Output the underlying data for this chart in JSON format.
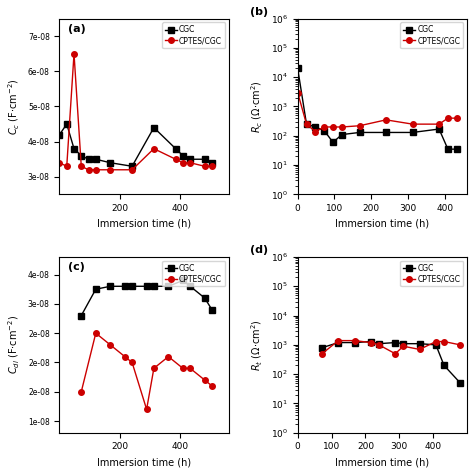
{
  "subplot_a": {
    "label": "(a)",
    "cgc_x": [
      0,
      24,
      48,
      72,
      96,
      120,
      168,
      240,
      312,
      384,
      408,
      432,
      480,
      504
    ],
    "cgc_y": [
      4.2e-08,
      4.5e-08,
      3.8e-08,
      3.6e-08,
      3.5e-08,
      3.5e-08,
      3.4e-08,
      3.3e-08,
      4.4e-08,
      3.8e-08,
      3.6e-08,
      3.5e-08,
      3.5e-08,
      3.4e-08
    ],
    "cptes_x": [
      0,
      24,
      48,
      72,
      96,
      120,
      168,
      240,
      312,
      384,
      408,
      432,
      480,
      504
    ],
    "cptes_y": [
      3.4e-08,
      3.3e-08,
      6.5e-08,
      3.3e-08,
      3.2e-08,
      3.2e-08,
      3.2e-08,
      3.2e-08,
      3.8e-08,
      3.5e-08,
      3.4e-08,
      3.4e-08,
      3.3e-08,
      3.3e-08
    ],
    "ylabel": "$C_{c}$ (F$\\cdot$cm$^{-2}$)",
    "xlabel": "Immersion time (h)",
    "xlim": [
      0,
      560
    ],
    "xticks": [
      200,
      400
    ],
    "log": false
  },
  "subplot_b": {
    "label": "(b)",
    "cgc_x": [
      0,
      24,
      48,
      72,
      96,
      120,
      168,
      240,
      312,
      384,
      408,
      432
    ],
    "cgc_y": [
      20000.0,
      250.0,
      200.0,
      150.0,
      60.0,
      110.0,
      130.0,
      130.0,
      130.0,
      170.0,
      35.0,
      35.0
    ],
    "cptes_x": [
      0,
      24,
      48,
      72,
      96,
      120,
      168,
      240,
      312,
      384,
      408,
      432
    ],
    "cptes_y": [
      3000.0,
      250.0,
      140.0,
      200.0,
      200.0,
      200.0,
      220.0,
      350.0,
      250.0,
      250.0,
      400.0,
      400.0
    ],
    "ylabel": "$R_{c}$ ($\\Omega$$\\cdot$cm$^{2}$)",
    "xlabel": "Immersion time (h)",
    "xlim": [
      0,
      460
    ],
    "xticks": [
      0,
      100,
      200,
      300,
      400
    ],
    "ylim": [
      1.0,
      1000000.0
    ],
    "log": true
  },
  "subplot_c": {
    "label": "(c)",
    "cgc_x": [
      72,
      120,
      168,
      216,
      240,
      288,
      312,
      360,
      408,
      432,
      480,
      504
    ],
    "cgc_y": [
      2.8e-08,
      3.25e-08,
      3.3e-08,
      3.3e-08,
      3.3e-08,
      3.3e-08,
      3.3e-08,
      3.3e-08,
      3.4e-08,
      3.3e-08,
      3.1e-08,
      2.9e-08
    ],
    "cptes_x": [
      72,
      120,
      168,
      216,
      240,
      288,
      312,
      360,
      408,
      432,
      480,
      504
    ],
    "cptes_y": [
      1.5e-08,
      2.5e-08,
      2.3e-08,
      2.1e-08,
      2e-08,
      1.2e-08,
      1.9e-08,
      2.1e-08,
      1.9e-08,
      1.9e-08,
      1.7e-08,
      1.6e-08
    ],
    "ylabel": "$C_{dl}$ (F$\\cdot$cm$^{-2}$)",
    "xlabel": "Immersion time (h)",
    "xlim": [
      0,
      560
    ],
    "xticks": [
      200,
      400
    ],
    "log": false
  },
  "subplot_d": {
    "label": "(d)",
    "cgc_x": [
      72,
      120,
      168,
      216,
      240,
      288,
      312,
      360,
      408,
      432,
      480
    ],
    "cgc_y": [
      800.0,
      1200.0,
      1200.0,
      1300.0,
      1100.0,
      1200.0,
      1100.0,
      1100.0,
      1000.0,
      200.0,
      50.0
    ],
    "cptes_x": [
      72,
      120,
      168,
      216,
      240,
      288,
      312,
      360,
      408,
      432,
      480
    ],
    "cptes_y": [
      500.0,
      1400.0,
      1400.0,
      1200.0,
      1000.0,
      500.0,
      900.0,
      700.0,
      1300.0,
      1300.0,
      1000.0
    ],
    "ylabel": "$R_{t}$ ($\\Omega$$\\cdot$cm$^{2}$)",
    "xlabel": "Immersion time (h)",
    "xlim": [
      0,
      500
    ],
    "xticks": [
      0,
      100,
      200,
      300,
      400
    ],
    "ylim": [
      1.0,
      1000000.0
    ],
    "log": true
  },
  "cgc_color": "#000000",
  "cptes_color": "#cc0000",
  "cgc_marker": "s",
  "cptes_marker": "o",
  "markersize": 4,
  "linewidth": 1.0,
  "legend_cgc": "CGC",
  "legend_cptes": "CPTES/CGC"
}
